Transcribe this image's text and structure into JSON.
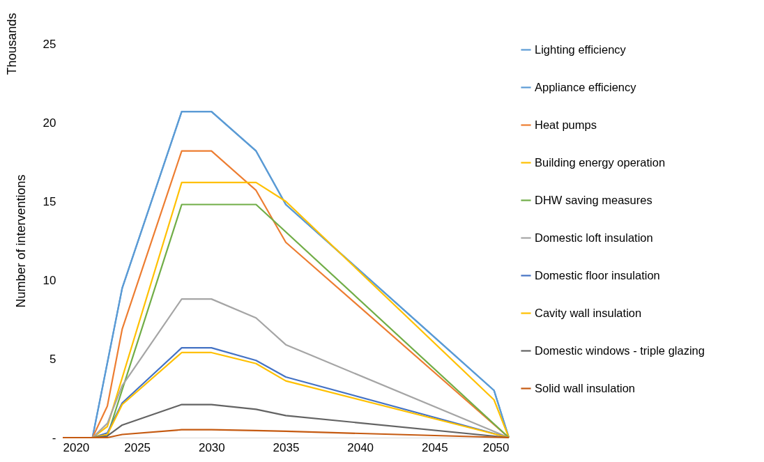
{
  "chart_data": {
    "type": "line",
    "ylabel": "Number of interventions",
    "annotations": [
      "Thousands"
    ],
    "xlim": [
      2020,
      2050
    ],
    "xticks": [
      2020,
      2025,
      2030,
      2035,
      2040,
      2045,
      2050
    ],
    "ylim": [
      0,
      25
    ],
    "yticks": [
      {
        "value": 0,
        "label": "-"
      },
      5,
      10,
      15,
      20,
      25
    ],
    "grid": false,
    "legend": "right",
    "line_style": "solid",
    "marker": "none",
    "series": [
      {
        "name": "Lighting efficiency",
        "color": "#5b9bd5",
        "x": [
          2020,
          2022,
          2024,
          2028,
          2030,
          2033,
          2035,
          2049,
          2050
        ],
        "values": [
          0,
          0,
          9.5,
          20.7,
          20.7,
          18.2,
          14.8,
          3.0,
          0
        ]
      },
      {
        "name": "Appliance efficiency",
        "color": "#5b9bd5",
        "x": [
          2020,
          2022,
          2024,
          2028,
          2030,
          2033,
          2035,
          2049,
          2050
        ],
        "values": [
          0,
          0,
          9.5,
          20.7,
          20.7,
          18.2,
          14.8,
          3.0,
          0
        ]
      },
      {
        "name": "Heat pumps",
        "color": "#ed7d31",
        "x": [
          2020,
          2022,
          2023,
          2024,
          2028,
          2030,
          2033,
          2035,
          2050
        ],
        "values": [
          0,
          0,
          2.0,
          6.9,
          18.2,
          18.2,
          15.7,
          12.4,
          0
        ]
      },
      {
        "name": "Building energy operation",
        "color": "#ffc000",
        "x": [
          2020,
          2022,
          2023,
          2028,
          2030,
          2033,
          2035,
          2049,
          2050
        ],
        "values": [
          0,
          0,
          0.7,
          16.2,
          16.2,
          16.2,
          15.0,
          2.4,
          0
        ]
      },
      {
        "name": "DHW saving measures",
        "color": "#70ad47",
        "x": [
          2020,
          2022,
          2023,
          2028,
          2030,
          2033,
          2050
        ],
        "values": [
          0,
          0,
          0.1,
          14.8,
          14.8,
          14.8,
          0
        ]
      },
      {
        "name": "Domestic loft insulation",
        "color": "#a5a5a5",
        "x": [
          2020,
          2022,
          2023,
          2024,
          2028,
          2030,
          2033,
          2035,
          2050
        ],
        "values": [
          0,
          0,
          0.9,
          3.3,
          8.8,
          8.8,
          7.6,
          5.9,
          0
        ]
      },
      {
        "name": "Domestic floor insulation",
        "color": "#4472c4",
        "x": [
          2020,
          2022,
          2023,
          2024,
          2028,
          2030,
          2033,
          2035,
          2050
        ],
        "values": [
          0,
          0,
          0.3,
          2.2,
          5.7,
          5.7,
          4.9,
          3.85,
          0
        ]
      },
      {
        "name": "Cavity wall insulation",
        "color": "#ffc000",
        "x": [
          2020,
          2022,
          2023,
          2024,
          2028,
          2030,
          2033,
          2035,
          2050
        ],
        "values": [
          0,
          0,
          0.2,
          2.1,
          5.4,
          5.4,
          4.7,
          3.6,
          0
        ]
      },
      {
        "name": "Domestic windows - triple glazing",
        "color": "#636363",
        "x": [
          2020,
          2022,
          2023,
          2024,
          2028,
          2030,
          2033,
          2035,
          2050
        ],
        "values": [
          0,
          0,
          0.1,
          0.8,
          2.1,
          2.1,
          1.8,
          1.4,
          0
        ]
      },
      {
        "name": "Solid wall insulation",
        "color": "#c55a11",
        "x": [
          2020,
          2022,
          2023,
          2024,
          2028,
          2030,
          2033,
          2035,
          2050
        ],
        "values": [
          0,
          0,
          0,
          0.2,
          0.5,
          0.5,
          0.45,
          0.4,
          0
        ]
      }
    ]
  }
}
